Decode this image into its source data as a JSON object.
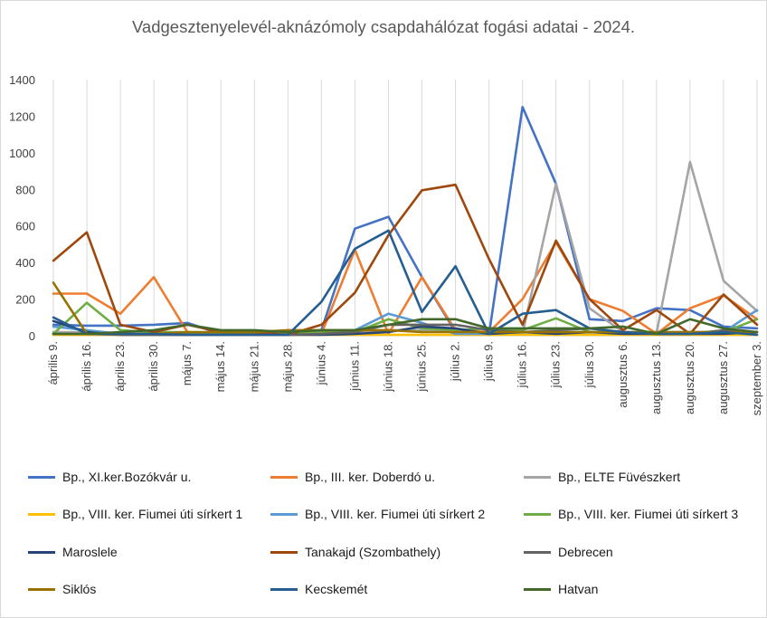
{
  "chart_data": {
    "type": "line",
    "title": "Vadgesztenyelevél-aknázómoly csapdahálózat fogási adatai - 2024.",
    "ylim": [
      0,
      1400
    ],
    "ystep": 200,
    "yticks": [
      "0",
      "200",
      "400",
      "600",
      "800",
      "1000",
      "1200",
      "1400"
    ],
    "grid": "vertical",
    "legend_position": "bottom",
    "categories": [
      "április 9.",
      "április 16.",
      "április 23.",
      "április 30.",
      "május 7.",
      "május 14.",
      "május 21.",
      "május 28.",
      "június 4.",
      "június 11.",
      "június 18.",
      "június 25.",
      "július 2.",
      "július 9.",
      "július 16.",
      "július 23.",
      "július 30.",
      "augusztus 6.",
      "augusztus 13.",
      "augusztus 20.",
      "augusztus 27.",
      "szeptember 3."
    ],
    "series": [
      {
        "name": "Bp., XI.ker.Bozókvár u.",
        "color": "#4472c4",
        "values": [
          60,
          55,
          55,
          60,
          70,
          10,
          5,
          5,
          30,
          585,
          650,
          320,
          20,
          5,
          1250,
          830,
          90,
          80,
          150,
          140,
          50,
          40
        ]
      },
      {
        "name": "Bp., III. ker. Doberdó u.",
        "color": "#ed7d31",
        "values": [
          230,
          230,
          120,
          320,
          20,
          15,
          5,
          30,
          10,
          470,
          10,
          320,
          30,
          20,
          200,
          510,
          200,
          135,
          10,
          150,
          220,
          90
        ]
      },
      {
        "name": "Bp., ELTE Füvészkert",
        "color": "#a5a5a5",
        "values": [
          20,
          20,
          10,
          10,
          5,
          5,
          5,
          10,
          20,
          20,
          30,
          30,
          30,
          10,
          10,
          830,
          150,
          20,
          15,
          950,
          300,
          135
        ]
      },
      {
        "name": "Bp., VIII. ker. Fiumei úti sírkert 1",
        "color": "#ffc000",
        "values": [
          5,
          5,
          5,
          5,
          5,
          5,
          5,
          5,
          5,
          5,
          5,
          5,
          5,
          5,
          5,
          5,
          5,
          5,
          5,
          5,
          5,
          5
        ]
      },
      {
        "name": "Bp., VIII. ker. Fiumei úti sírkert 2",
        "color": "#5b9bd5",
        "values": [
          50,
          30,
          10,
          10,
          10,
          10,
          10,
          10,
          20,
          30,
          120,
          70,
          10,
          10,
          20,
          20,
          20,
          20,
          20,
          20,
          20,
          140
        ]
      },
      {
        "name": "Bp., VIII. ker. Fiumei úti sírkert 3",
        "color": "#70ad47",
        "values": [
          10,
          180,
          30,
          20,
          20,
          10,
          10,
          10,
          20,
          20,
          90,
          40,
          30,
          40,
          30,
          95,
          20,
          20,
          10,
          10,
          20,
          90
        ]
      },
      {
        "name": "Maroslele",
        "color": "#264478",
        "values": [
          80,
          20,
          5,
          5,
          5,
          5,
          5,
          5,
          5,
          10,
          20,
          50,
          40,
          10,
          20,
          10,
          20,
          10,
          10,
          10,
          10,
          20
        ]
      },
      {
        "name": "Tanakajd (Szombathely)",
        "color": "#9e480e",
        "values": [
          410,
          565,
          60,
          20,
          60,
          20,
          20,
          5,
          60,
          235,
          550,
          795,
          825,
          420,
          60,
          520,
          200,
          30,
          140,
          10,
          225,
          60
        ]
      },
      {
        "name": "Debrecen",
        "color": "#636363",
        "values": [
          10,
          10,
          5,
          5,
          5,
          5,
          5,
          5,
          10,
          20,
          60,
          60,
          60,
          30,
          20,
          30,
          40,
          20,
          10,
          10,
          30,
          20
        ]
      },
      {
        "name": "Siklós",
        "color": "#997300",
        "values": [
          290,
          10,
          10,
          10,
          20,
          20,
          20,
          30,
          30,
          30,
          30,
          20,
          20,
          20,
          20,
          20,
          20,
          20,
          20,
          20,
          20,
          20
        ]
      },
      {
        "name": "Kecskemét",
        "color": "#255e91",
        "values": [
          100,
          10,
          10,
          10,
          5,
          5,
          5,
          5,
          185,
          475,
          575,
          130,
          380,
          10,
          120,
          140,
          40,
          20,
          10,
          10,
          20,
          5
        ]
      },
      {
        "name": "Hatvan",
        "color": "#43682b",
        "values": [
          10,
          10,
          20,
          30,
          60,
          30,
          30,
          20,
          30,
          30,
          60,
          90,
          90,
          40,
          40,
          40,
          40,
          50,
          10,
          90,
          40,
          20
        ]
      }
    ]
  }
}
